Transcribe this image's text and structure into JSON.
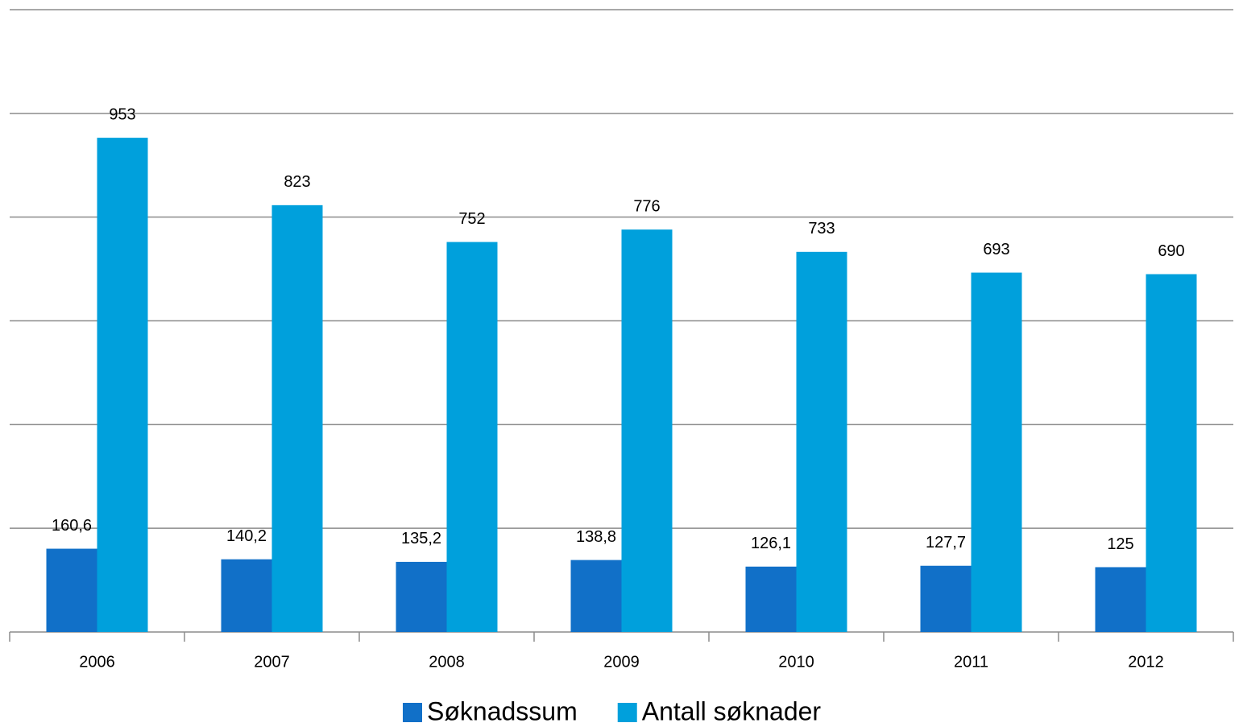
{
  "chart_data": {
    "type": "bar",
    "categories": [
      "2006",
      "2007",
      "2008",
      "2009",
      "2010",
      "2011",
      "2012"
    ],
    "series": [
      {
        "name": "Søknadssum",
        "color": "#1170c8",
        "values": [
          160.6,
          140.2,
          135.2,
          138.8,
          126.1,
          127.7,
          125
        ],
        "value_labels": [
          "160,6",
          "140,2",
          "135,2",
          "138,8",
          "126,1",
          "127,7",
          "125"
        ]
      },
      {
        "name": "Antall søknader",
        "color": "#00a0dc",
        "values": [
          953,
          823,
          752,
          776,
          733,
          693,
          690
        ]
      }
    ],
    "ylim": [
      0,
      1200
    ],
    "yticks": [
      0,
      200,
      400,
      600,
      800,
      1000,
      1200
    ],
    "grid": true,
    "legend": "bottom"
  }
}
